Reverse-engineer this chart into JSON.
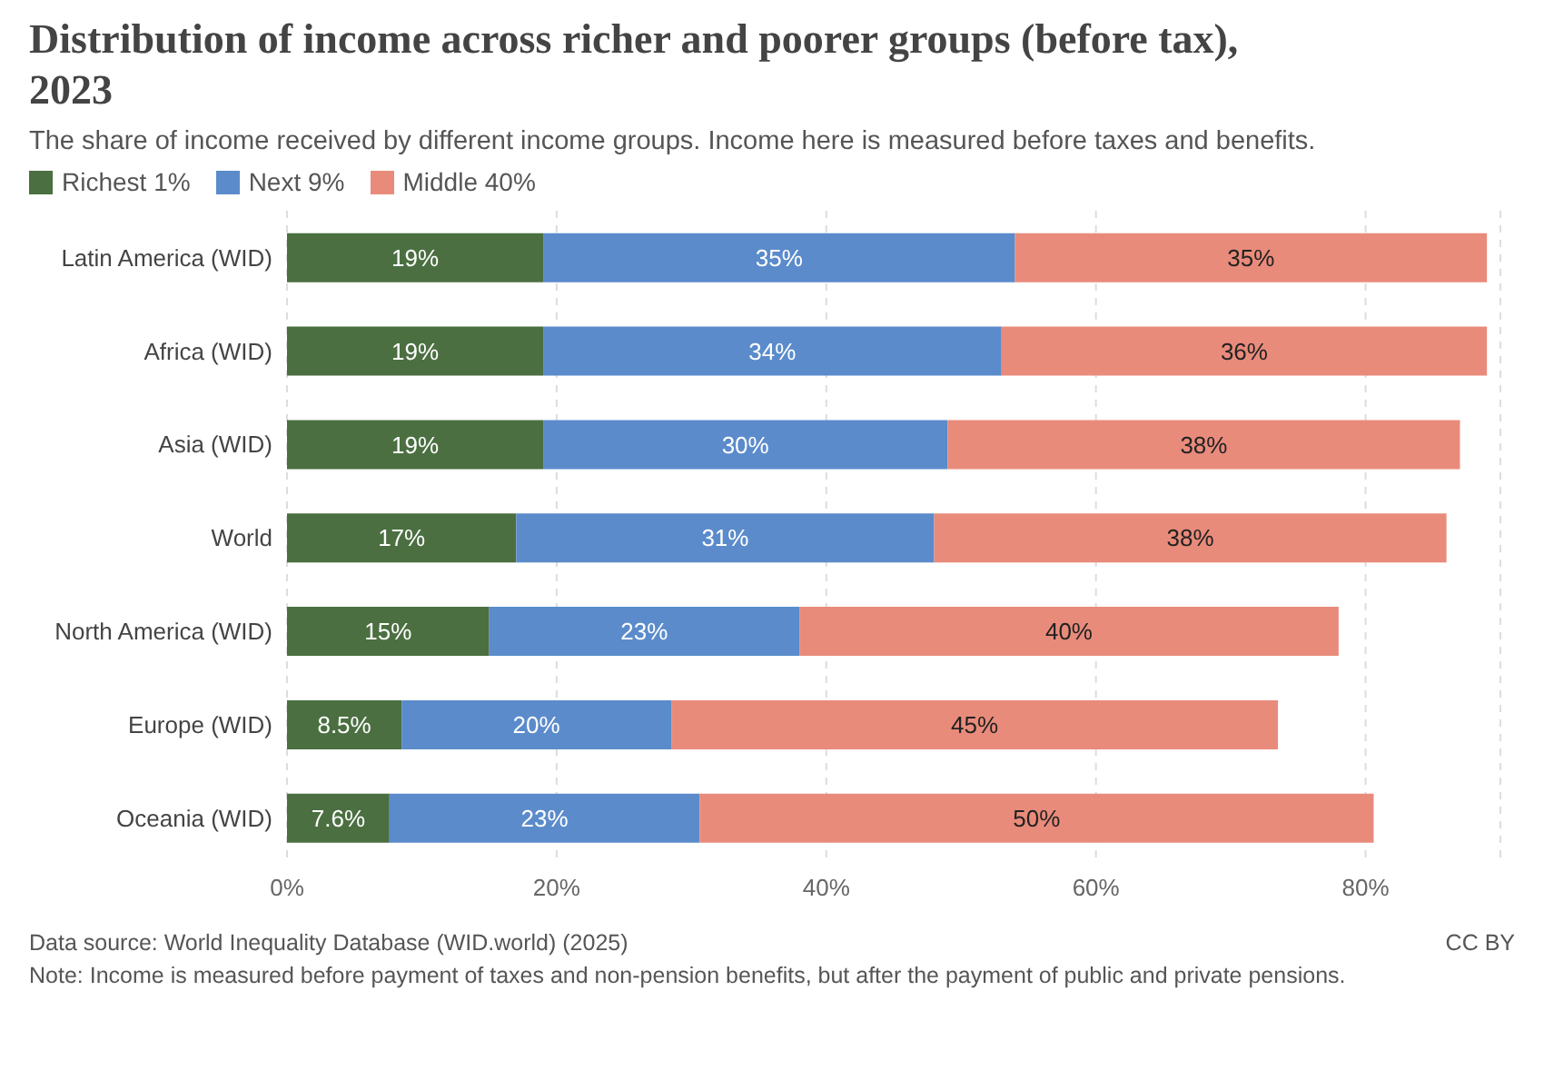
{
  "chart_data": {
    "type": "bar",
    "orientation": "horizontal",
    "stacked": true,
    "title": "Distribution of income across richer and poorer groups (before tax), 2023",
    "subtitle": "The share of income received by different income groups. Income here is measured before taxes and benefits.",
    "categories": [
      "Latin America (WID)",
      "Africa (WID)",
      "Asia (WID)",
      "World",
      "North America (WID)",
      "Europe (WID)",
      "Oceania (WID)"
    ],
    "series": [
      {
        "name": "Richest 1%",
        "color": "#4b6f41",
        "values": [
          19,
          19,
          19,
          17,
          15,
          8.5,
          7.6
        ],
        "value_labels": [
          "19%",
          "19%",
          "19%",
          "17%",
          "15%",
          "8.5%",
          "7.6%"
        ]
      },
      {
        "name": "Next 9%",
        "color": "#5b8bcb",
        "values": [
          35,
          34,
          30,
          31,
          23,
          20,
          23
        ],
        "value_labels": [
          "35%",
          "34%",
          "30%",
          "31%",
          "23%",
          "20%",
          "23%"
        ]
      },
      {
        "name": "Middle 40%",
        "color": "#e98b7b",
        "values": [
          35,
          36,
          38,
          38,
          40,
          45,
          50
        ],
        "value_labels": [
          "35%",
          "36%",
          "38%",
          "38%",
          "40%",
          "45%",
          "50%"
        ]
      }
    ],
    "xlim": [
      0,
      90
    ],
    "xticks": [
      {
        "value": 0,
        "label": "0%"
      },
      {
        "value": 20,
        "label": "20%"
      },
      {
        "value": 40,
        "label": "40%"
      },
      {
        "value": 60,
        "label": "60%"
      },
      {
        "value": 80,
        "label": "80%"
      }
    ],
    "grid": "x",
    "legend": "top left",
    "annotations": [
      "Data source: World Inequality Database (WID.world) (2025)",
      "CC BY",
      "Note: Income is measured before payment of taxes and non-pension benefits, but after the payment of public and private pensions."
    ]
  }
}
